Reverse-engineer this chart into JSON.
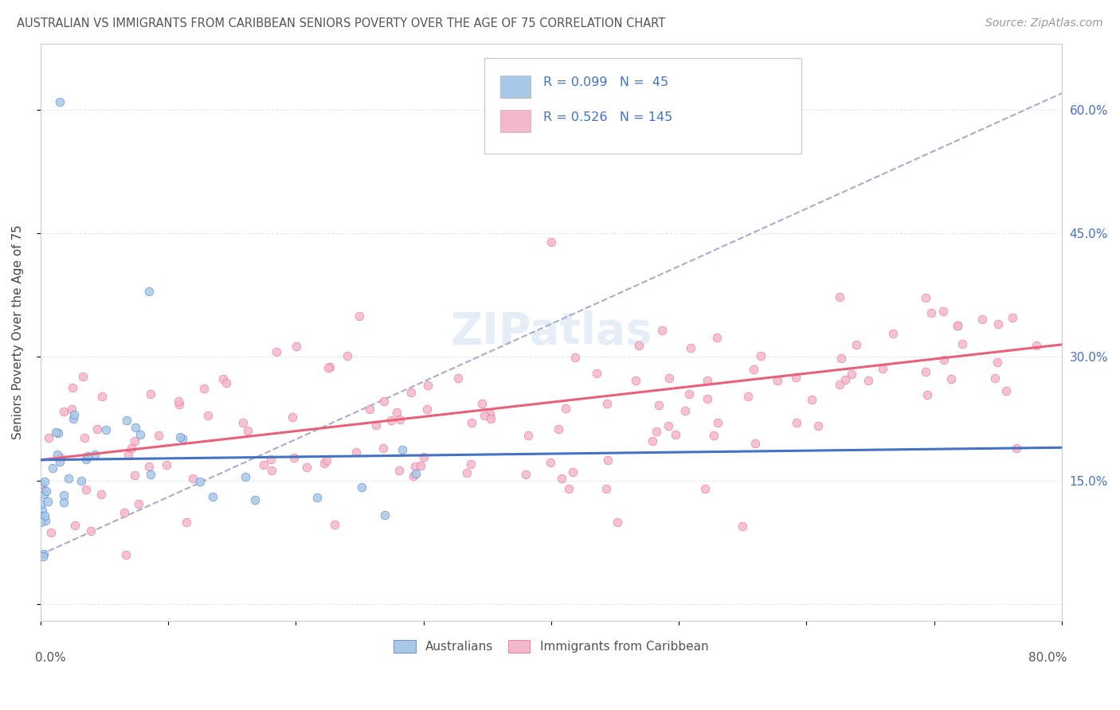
{
  "title": "AUSTRALIAN VS IMMIGRANTS FROM CARIBBEAN SENIORS POVERTY OVER THE AGE OF 75 CORRELATION CHART",
  "source": "Source: ZipAtlas.com",
  "ylabel": "Seniors Poverty Over the Age of 75",
  "xlim": [
    0.0,
    0.8
  ],
  "ylim": [
    -0.02,
    0.68
  ],
  "r_australian": 0.099,
  "n_australian": 45,
  "r_caribbean": 0.526,
  "n_caribbean": 145,
  "australian_color": "#a8c8e8",
  "caribbean_color": "#f4b8cc",
  "trendline_australian_color": "#4472c4",
  "trendline_caribbean_color": "#e8607a",
  "trendline_dashed_color": "#aaaacc",
  "background_color": "#ffffff",
  "grid_color": "#e8e8e8",
  "watermark": "ZIPatlas"
}
